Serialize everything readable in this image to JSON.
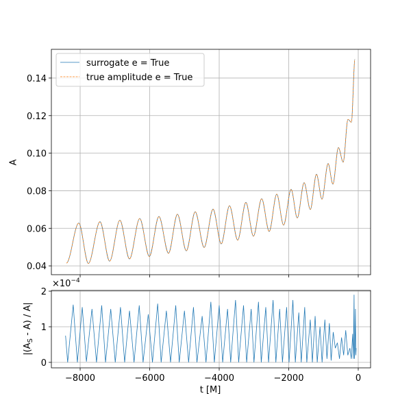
{
  "chart_data": [
    {
      "type": "line",
      "ylabel": "A",
      "legend": "upper left",
      "grid": true,
      "xlim": [
        -8828,
        355
      ],
      "ylim": [
        0.0353,
        0.1553
      ],
      "yticks": [
        0.04,
        0.06,
        0.08,
        {
          "value": 0.1,
          "label": "0.10"
        },
        0.12,
        0.14
      ],
      "x": [
        -8394,
        -8039,
        -7764,
        -7429,
        -7153,
        -6857,
        -6581,
        -6286,
        -6010,
        -5734,
        -5458,
        -5202,
        -4946,
        -4690,
        -4433,
        -4177,
        -3941,
        -3704,
        -3468,
        -3232,
        -3015,
        -2778,
        -2562,
        -2345,
        -2148,
        -1931,
        -1754,
        -1557,
        -1379,
        -1202,
        -1044,
        -867,
        -729,
        -571,
        -433,
        -296,
        -197,
        -95
      ],
      "series": [
        {
          "name": "surrogate e = True",
          "color": "#1f77b4",
          "style": "solid",
          "values": [
            0.0415,
            0.0628,
            0.0413,
            0.0635,
            0.0425,
            0.0643,
            0.0437,
            0.0652,
            0.045,
            0.0663,
            0.0467,
            0.0675,
            0.048,
            0.0688,
            0.0498,
            0.0702,
            0.0517,
            0.072,
            0.0537,
            0.0738,
            0.0558,
            0.0758,
            0.0583,
            0.0782,
            0.0617,
            0.0808,
            0.0655,
            0.0843,
            0.07,
            0.0888,
            0.0755,
            0.0945,
            0.0835,
            0.103,
            0.0952,
            0.118,
            0.1165,
            0.15
          ]
        },
        {
          "name": "true amplitude e = True",
          "color": "#ff7f0e",
          "style": "dashed",
          "values": [
            0.0415,
            0.0628,
            0.0413,
            0.0635,
            0.0425,
            0.0643,
            0.0437,
            0.0652,
            0.045,
            0.0663,
            0.0467,
            0.0675,
            0.048,
            0.0688,
            0.0498,
            0.0702,
            0.0517,
            0.072,
            0.0537,
            0.0738,
            0.0558,
            0.0758,
            0.0583,
            0.0782,
            0.0617,
            0.0808,
            0.0655,
            0.0843,
            0.07,
            0.0888,
            0.0755,
            0.0945,
            0.0835,
            0.103,
            0.0952,
            0.118,
            0.1165,
            0.15
          ]
        }
      ]
    },
    {
      "type": "line",
      "xlabel": "t [M]",
      "ylabel_parts": [
        "|(A",
        "S",
        " - A) / A|"
      ],
      "offset_text": {
        "base": "×10",
        "exponent": "−4"
      },
      "grid": true,
      "xlim": [
        -8828,
        355
      ],
      "ylim": [
        -0.154,
        2.02
      ],
      "xticks": [
        {
          "value": -8000,
          "label": "−8000"
        },
        {
          "value": -6000,
          "label": "−6000"
        },
        {
          "value": -4000,
          "label": "−4000"
        },
        {
          "value": -2000,
          "label": "−2000"
        },
        0
      ],
      "yticks": [
        0,
        1,
        2
      ],
      "x": [
        -8420,
        -8360,
        -8200,
        -8080,
        -7940,
        -7820,
        -7660,
        -7530,
        -7380,
        -7270,
        -7120,
        -6990,
        -6840,
        -6720,
        -6580,
        -6450,
        -6300,
        -6190,
        -6040,
        -5920,
        -5770,
        -5670,
        -5520,
        -5400,
        -5250,
        -5150,
        -5000,
        -4880,
        -4740,
        -4640,
        -4490,
        -4380,
        -4240,
        -4140,
        -4000,
        -3900,
        -3760,
        -3670,
        -3530,
        -3440,
        -3300,
        -3210,
        -3080,
        -3000,
        -2870,
        -2790,
        -2660,
        -2580,
        -2450,
        -2370,
        -2260,
        -2180,
        -2060,
        -1990,
        -1880,
        -1810,
        -1710,
        -1640,
        -1540,
        -1480,
        -1380,
        -1320,
        -1240,
        -1180,
        -1100,
        -1040,
        -960,
        -900,
        -830,
        -780,
        -720,
        -660,
        -600,
        -540,
        -480,
        -420,
        -360,
        -300,
        -240,
        -200,
        -160,
        -140,
        -120,
        -110,
        -95,
        -80,
        -70,
        -60
      ],
      "series": [
        {
          "color": "#1f77b4",
          "values": [
            0.75,
            0,
            1.62,
            0,
            1.55,
            0.02,
            1.5,
            0,
            1.6,
            0,
            1.5,
            0,
            1.55,
            0,
            1.45,
            0,
            1.6,
            0,
            1.35,
            0,
            1.65,
            0,
            1.45,
            0,
            1.6,
            0,
            1.45,
            0,
            1.55,
            0,
            1.3,
            0,
            1.7,
            0,
            1.6,
            0,
            1.5,
            0,
            1.75,
            0,
            1.6,
            0,
            1.5,
            0,
            1.7,
            0,
            1.55,
            0,
            1.75,
            0,
            1.5,
            0,
            1.55,
            0,
            1.75,
            0,
            1.4,
            0,
            1.55,
            0,
            1.2,
            0,
            1.3,
            0,
            1.0,
            0,
            1.2,
            0.1,
            1.1,
            0.05,
            0.85,
            0.4,
            0.55,
            0.1,
            0.7,
            0.2,
            0.9,
            0.2,
            0.4,
            0.1,
            0.8,
            0.1,
            1.9,
            0.1,
            0.4,
            1.5,
            0.2,
            0.4
          ]
        }
      ]
    }
  ]
}
